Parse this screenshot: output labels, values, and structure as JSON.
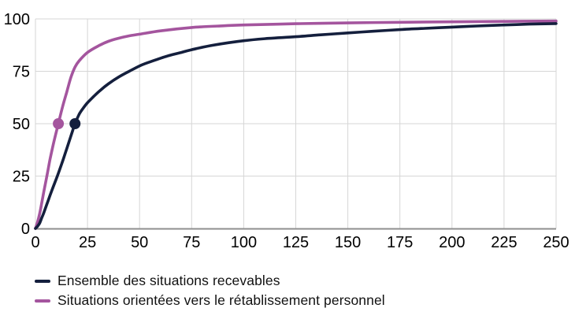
{
  "colors": {
    "ensemble": "#141f3d",
    "retablissement": "#a4559e",
    "gridline": "#d6d6d6",
    "axis_line": "#8f8f8f",
    "tick_text": "#000000"
  },
  "chart_data": {
    "type": "line",
    "title": "",
    "xlabel": "",
    "ylabel": "",
    "xlim": [
      0,
      250
    ],
    "ylim": [
      0,
      100
    ],
    "x_ticks": [
      0,
      25,
      50,
      75,
      100,
      125,
      150,
      175,
      200,
      225,
      250
    ],
    "y_ticks": [
      0,
      25,
      50,
      75,
      100
    ],
    "grid": true,
    "legend_position": "bottom-left",
    "series": [
      {
        "name": "Ensemble des situations recevables",
        "color": "#141f3d",
        "median_marker": {
          "x": 19,
          "y": 50
        },
        "points": [
          [
            0,
            0
          ],
          [
            1,
            1
          ],
          [
            2,
            2.5
          ],
          [
            3,
            5
          ],
          [
            4,
            7.5
          ],
          [
            6,
            13
          ],
          [
            8,
            18.5
          ],
          [
            10.5,
            25
          ],
          [
            13,
            32
          ],
          [
            15,
            38
          ],
          [
            17,
            44
          ],
          [
            19,
            50
          ],
          [
            21,
            54.5
          ],
          [
            23,
            57.5
          ],
          [
            25,
            60
          ],
          [
            28,
            63
          ],
          [
            31,
            65.8
          ],
          [
            35,
            69
          ],
          [
            40,
            72.3
          ],
          [
            45,
            75
          ],
          [
            51,
            78
          ],
          [
            57,
            80.2
          ],
          [
            64,
            82.5
          ],
          [
            70,
            84
          ],
          [
            75,
            85.3
          ],
          [
            85,
            87.4
          ],
          [
            100,
            89.6
          ],
          [
            112,
            90.7
          ],
          [
            125,
            91.5
          ],
          [
            137,
            92.4
          ],
          [
            150,
            93.3
          ],
          [
            162,
            94.1
          ],
          [
            175,
            94.9
          ],
          [
            187,
            95.5
          ],
          [
            200,
            96.1
          ],
          [
            212,
            96.6
          ],
          [
            225,
            97.1
          ],
          [
            237,
            97.5
          ],
          [
            250,
            97.8
          ]
        ]
      },
      {
        "name": "Situations orientées vers le rétablissement personnel",
        "color": "#a4559e",
        "median_marker": {
          "x": 11,
          "y": 50
        },
        "points": [
          [
            0,
            0
          ],
          [
            1,
            3
          ],
          [
            2,
            7
          ],
          [
            3,
            12
          ],
          [
            4,
            17.5
          ],
          [
            5.5,
            25
          ],
          [
            7,
            33
          ],
          [
            9,
            42
          ],
          [
            11,
            50
          ],
          [
            13,
            58
          ],
          [
            15,
            65
          ],
          [
            17,
            72
          ],
          [
            19,
            77
          ],
          [
            21,
            80
          ],
          [
            25,
            84
          ],
          [
            30,
            87
          ],
          [
            35,
            89.3
          ],
          [
            40,
            90.8
          ],
          [
            45,
            91.9
          ],
          [
            50,
            92.7
          ],
          [
            60,
            94.3
          ],
          [
            75,
            95.9
          ],
          [
            90,
            96.7
          ],
          [
            100,
            97.1
          ],
          [
            125,
            97.7
          ],
          [
            150,
            98.1
          ],
          [
            175,
            98.4
          ],
          [
            200,
            98.6
          ],
          [
            225,
            98.8
          ],
          [
            250,
            99
          ]
        ]
      }
    ]
  }
}
